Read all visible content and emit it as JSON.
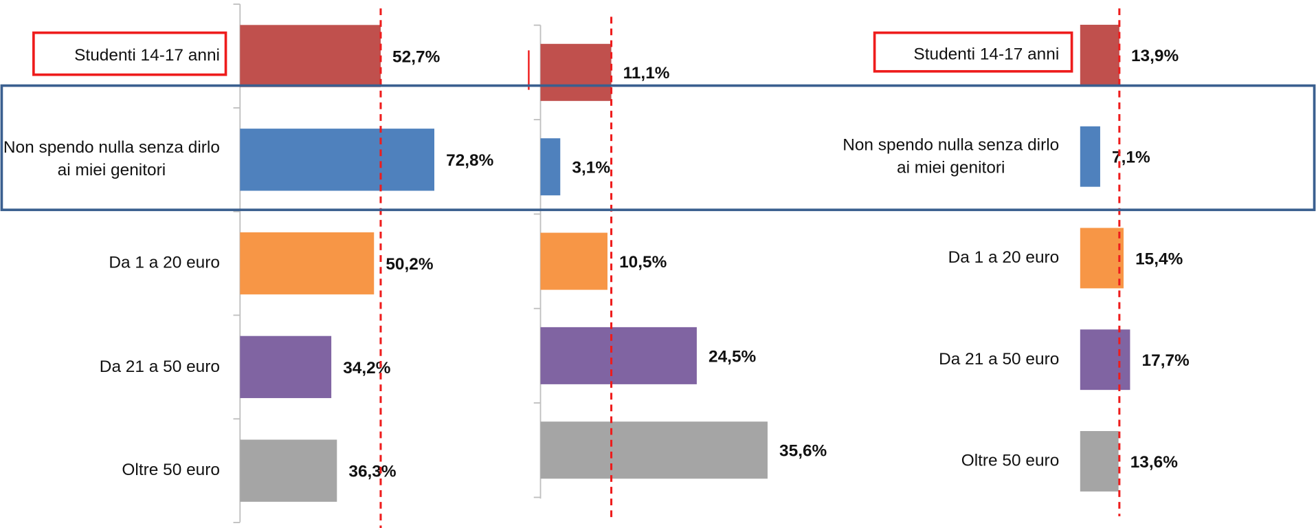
{
  "chart_data": [
    {
      "type": "bar",
      "orientation": "horizontal",
      "categories": [
        "Studenti 14-17 anni",
        "Non spendo nulla senza dirlo ai miei genitori",
        "Da 1 a 20 euro",
        "Da 21 a 50 euro",
        "Oltre 50 euro"
      ],
      "values": [
        52.7,
        72.8,
        50.2,
        34.2,
        36.3
      ],
      "value_labels": [
        "52,7%",
        "72,8%",
        "50,2%",
        "34,2%",
        "36,3%"
      ],
      "colors": [
        "#c0504d",
        "#4f81bd",
        "#f79646",
        "#8064a2",
        "#a5a5a5"
      ],
      "xlim": [
        0,
        100
      ]
    },
    {
      "type": "bar",
      "orientation": "horizontal",
      "categories": [
        null,
        null,
        null,
        null,
        null
      ],
      "values": [
        11.1,
        3.1,
        10.5,
        24.5,
        35.6
      ],
      "value_labels": [
        "11,1%",
        "3,1%",
        "10,5%",
        "24,5%",
        "35,6%"
      ],
      "colors": [
        "#c0504d",
        "#4f81bd",
        "#f79646",
        "#8064a2",
        "#a5a5a5"
      ],
      "xlim": [
        0,
        100
      ]
    },
    {
      "type": "bar",
      "orientation": "horizontal",
      "categories": [
        "Studenti 14-17 anni",
        "Non spendo nulla senza dirlo ai miei genitori",
        "Da 1 a 20 euro",
        "Da 21 a 50 euro",
        "Oltre 50 euro"
      ],
      "values": [
        13.9,
        7.1,
        15.4,
        17.7,
        13.6
      ],
      "value_labels": [
        "13,9%",
        "7,1%",
        "15,4%",
        "17,7%",
        "13,6%"
      ],
      "colors": [
        "#c0504d",
        "#4f81bd",
        "#f79646",
        "#8064a2",
        "#a5a5a5"
      ],
      "xlim": [
        0,
        100
      ]
    }
  ]
}
